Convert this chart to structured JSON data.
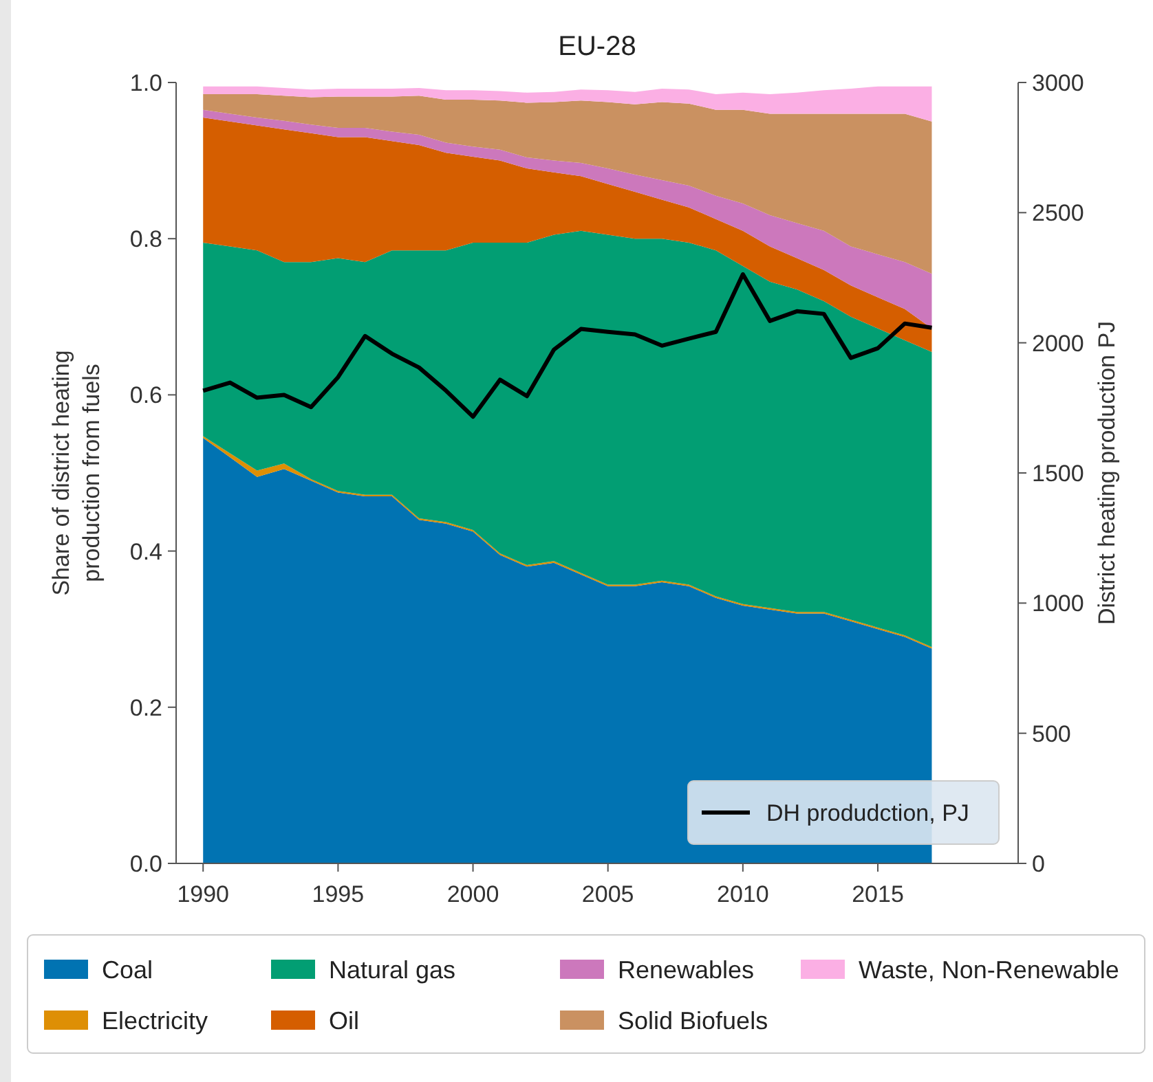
{
  "chart_data": {
    "type": "area",
    "title": "EU-28",
    "ylabel": "Share of district heating\nproduction from fuels",
    "y2label": "District heating production PJ",
    "x": [
      1990,
      1991,
      1992,
      1993,
      1994,
      1995,
      1996,
      1997,
      1998,
      1999,
      2000,
      2001,
      2002,
      2003,
      2004,
      2005,
      2006,
      2007,
      2008,
      2009,
      2010,
      2011,
      2012,
      2013,
      2014,
      2015,
      2016,
      2017
    ],
    "stacked": true,
    "legend": "bottom",
    "grid": false,
    "xlim": [
      1989,
      2020.2
    ],
    "xticks": [
      1990,
      1995,
      2000,
      2005,
      2010,
      2015
    ],
    "ylim": [
      0,
      1.0
    ],
    "yticks": [
      {
        "value": 0,
        "label": "0.0"
      },
      {
        "value": 0.2,
        "label": "0.2"
      },
      {
        "value": 0.4,
        "label": "0.4"
      },
      {
        "value": 0.6,
        "label": "0.6"
      },
      {
        "value": 0.8,
        "label": "0.8"
      },
      {
        "value": 1.0,
        "label": "1.0"
      }
    ],
    "y2lim": [
      0,
      3000
    ],
    "y2ticks": [
      0,
      500,
      1000,
      1500,
      2000,
      2500,
      3000
    ],
    "series": [
      {
        "name": "Coal",
        "color": "#0173b2",
        "values": [
          0.545,
          0.52,
          0.495,
          0.505,
          0.49,
          0.475,
          0.47,
          0.47,
          0.44,
          0.435,
          0.425,
          0.395,
          0.38,
          0.385,
          0.37,
          0.355,
          0.355,
          0.36,
          0.355,
          0.34,
          0.33,
          0.325,
          0.32,
          0.32,
          0.31,
          0.3,
          0.29,
          0.275
        ]
      },
      {
        "name": "Electricity",
        "color": "#de8f05",
        "values": [
          0.002,
          0.005,
          0.008,
          0.007,
          0.002,
          0.002,
          0.002,
          0.002,
          0.002,
          0.002,
          0.002,
          0.002,
          0.002,
          0.002,
          0.002,
          0.002,
          0.002,
          0.002,
          0.002,
          0.002,
          0.002,
          0.002,
          0.002,
          0.002,
          0.002,
          0.002,
          0.002,
          0.002
        ]
      },
      {
        "name": "Natural gas",
        "color": "#029e73",
        "values": [
          0.248,
          0.265,
          0.282,
          0.258,
          0.278,
          0.298,
          0.298,
          0.313,
          0.343,
          0.348,
          0.368,
          0.398,
          0.413,
          0.418,
          0.438,
          0.448,
          0.443,
          0.438,
          0.438,
          0.443,
          0.433,
          0.418,
          0.413,
          0.398,
          0.388,
          0.383,
          0.378,
          0.378
        ]
      },
      {
        "name": "Oil",
        "color": "#d55e00",
        "values": [
          0.16,
          0.16,
          0.16,
          0.17,
          0.165,
          0.155,
          0.16,
          0.14,
          0.135,
          0.125,
          0.11,
          0.105,
          0.095,
          0.08,
          0.07,
          0.065,
          0.06,
          0.05,
          0.045,
          0.04,
          0.045,
          0.045,
          0.04,
          0.04,
          0.04,
          0.04,
          0.04,
          0.03
        ]
      },
      {
        "name": "Renewables",
        "color": "#cc78bc",
        "values": [
          0.01,
          0.01,
          0.01,
          0.011,
          0.011,
          0.012,
          0.012,
          0.012,
          0.013,
          0.013,
          0.013,
          0.014,
          0.014,
          0.015,
          0.017,
          0.02,
          0.022,
          0.025,
          0.028,
          0.03,
          0.035,
          0.04,
          0.045,
          0.05,
          0.05,
          0.055,
          0.06,
          0.07
        ]
      },
      {
        "name": "Solid Biofuels",
        "color": "#ca9161",
        "values": [
          0.02,
          0.025,
          0.03,
          0.032,
          0.035,
          0.04,
          0.04,
          0.045,
          0.05,
          0.055,
          0.06,
          0.063,
          0.07,
          0.075,
          0.08,
          0.085,
          0.09,
          0.1,
          0.105,
          0.11,
          0.12,
          0.13,
          0.14,
          0.15,
          0.17,
          0.18,
          0.19,
          0.195
        ]
      },
      {
        "name": "Waste, Non-Renewable",
        "color": "#fbafe4",
        "values": [
          0.01,
          0.01,
          0.01,
          0.01,
          0.01,
          0.01,
          0.01,
          0.01,
          0.01,
          0.012,
          0.012,
          0.012,
          0.013,
          0.013,
          0.014,
          0.015,
          0.016,
          0.017,
          0.018,
          0.02,
          0.022,
          0.025,
          0.027,
          0.03,
          0.032,
          0.035,
          0.035,
          0.045
        ]
      },
      {
        "name": "DH produdction, PJ",
        "type": "line",
        "axis": "y2",
        "color": "#000000",
        "values": [
          1816,
          1847,
          1789,
          1800,
          1753,
          1868,
          2026,
          1958,
          1905,
          1816,
          1716,
          1858,
          1795,
          1974,
          2053,
          2042,
          2032,
          1989,
          2016,
          2042,
          2263,
          2084,
          2121,
          2111,
          1942,
          1979,
          2074,
          2058
        ]
      }
    ]
  }
}
